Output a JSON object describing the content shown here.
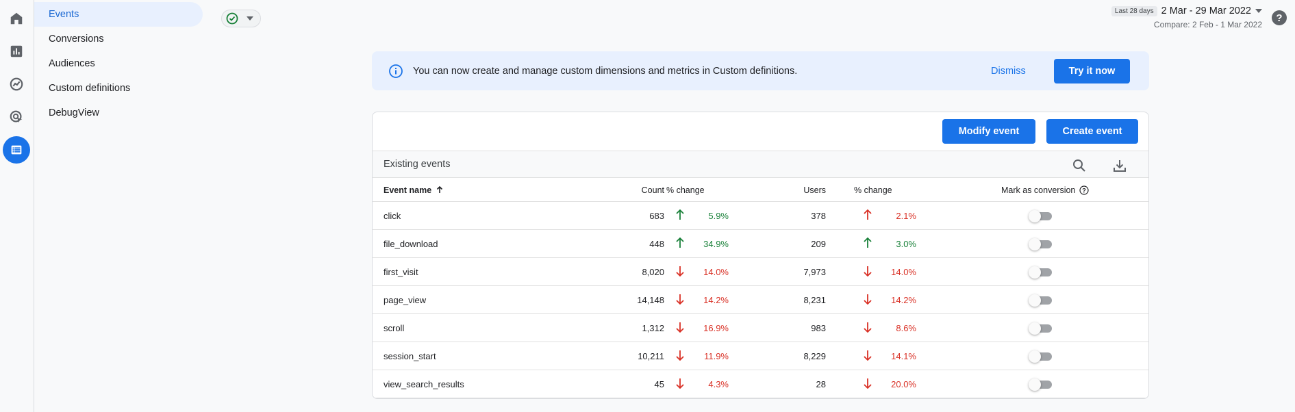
{
  "rail": {
    "icons": [
      "home-icon",
      "reports-icon",
      "explore-icon",
      "advertising-icon",
      "configure-icon"
    ]
  },
  "nav": {
    "items": [
      {
        "label": "Events",
        "active": true
      },
      {
        "label": "Conversions"
      },
      {
        "label": "Audiences"
      },
      {
        "label": "Custom definitions"
      },
      {
        "label": "DebugView"
      }
    ]
  },
  "date": {
    "chip": "Last 28 days",
    "range": "2 Mar - 29 Mar 2022",
    "compare": "Compare: 2 Feb - 1 Mar 2022"
  },
  "help": {
    "label": "?"
  },
  "banner": {
    "text": "You can now create and manage custom dimensions and metrics in Custom definitions.",
    "dismiss": "Dismiss",
    "try": "Try it now"
  },
  "card": {
    "modify": "Modify event",
    "create": "Create event",
    "subtitle": "Existing events",
    "headers": {
      "event_name": "Event name",
      "count": "Count",
      "count_change": "% change",
      "users": "Users",
      "users_change": "% change",
      "conversion": "Mark as conversion"
    },
    "rows": [
      {
        "name": "click",
        "count": "683",
        "count_dir": "up",
        "count_pct": "5.9%",
        "users": "378",
        "users_dir": "up-red",
        "users_pct": "2.1%"
      },
      {
        "name": "file_download",
        "count": "448",
        "count_dir": "up",
        "count_pct": "34.9%",
        "users": "209",
        "users_dir": "up",
        "users_pct": "3.0%"
      },
      {
        "name": "first_visit",
        "count": "8,020",
        "count_dir": "down",
        "count_pct": "14.0%",
        "users": "7,973",
        "users_dir": "down",
        "users_pct": "14.0%"
      },
      {
        "name": "page_view",
        "count": "14,148",
        "count_dir": "down",
        "count_pct": "14.2%",
        "users": "8,231",
        "users_dir": "down",
        "users_pct": "14.2%"
      },
      {
        "name": "scroll",
        "count": "1,312",
        "count_dir": "down",
        "count_pct": "16.9%",
        "users": "983",
        "users_dir": "down",
        "users_pct": "8.6%"
      },
      {
        "name": "session_start",
        "count": "10,211",
        "count_dir": "down",
        "count_pct": "11.9%",
        "users": "8,229",
        "users_dir": "down",
        "users_pct": "14.1%"
      },
      {
        "name": "view_search_results",
        "count": "45",
        "count_dir": "down",
        "count_pct": "4.3%",
        "users": "28",
        "users_dir": "down",
        "users_pct": "20.0%"
      }
    ]
  },
  "colors": {
    "accent": "#1a73e8",
    "up": "#188038",
    "down": "#d93025"
  }
}
